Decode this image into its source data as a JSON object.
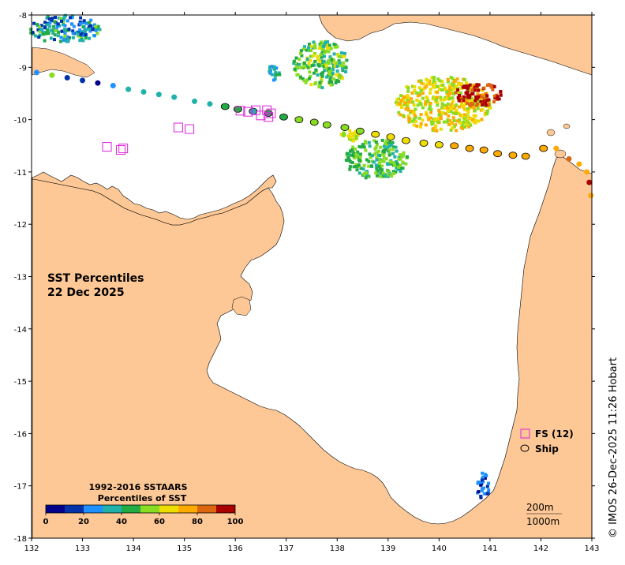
{
  "title": {
    "line1": "SST Percentiles",
    "line2": "22 Dec 2025"
  },
  "credit": "© IMOS 26-Dec-2025 11:26 Hobart",
  "axes": {
    "x_ticks": [
      "132",
      "133",
      "134",
      "135",
      "136",
      "137",
      "138",
      "139",
      "140",
      "141",
      "142",
      "143"
    ],
    "y_ticks": [
      "-8",
      "-9",
      "-10",
      "-11",
      "-12",
      "-13",
      "-14",
      "-15",
      "-16",
      "-17",
      "-18"
    ],
    "lon_range": [
      132,
      143
    ],
    "lat_range": [
      -18,
      -8
    ]
  },
  "colorbar": {
    "title1": "1992-2016 SSTAARS",
    "title2": "Percentiles of SST",
    "labels": [
      "0",
      "20",
      "40",
      "60",
      "80",
      "100"
    ],
    "colors": [
      "#00008b",
      "#0033aa",
      "#1e90ff",
      "#20b2aa",
      "#22aa44",
      "#88dd22",
      "#eedd00",
      "#ffaa00",
      "#dd6611",
      "#aa0000"
    ]
  },
  "legend": {
    "fs_label": "FS (12)",
    "ship_label": "Ship",
    "fs_color": "#dd22dd"
  },
  "depth": {
    "contour1": "200m",
    "contour2": "1000m"
  },
  "colors": {
    "land": "#fdc896",
    "ocean": "#ffffff"
  },
  "ship_track": [
    {
      "lon": 132.1,
      "lat": -9.1,
      "pct": 25
    },
    {
      "lon": 132.4,
      "lat": -9.15,
      "pct": 50
    },
    {
      "lon": 132.7,
      "lat": -9.2,
      "pct": 10
    },
    {
      "lon": 133.0,
      "lat": -9.25,
      "pct": 15
    },
    {
      "lon": 133.3,
      "lat": -9.3,
      "pct": 5
    },
    {
      "lon": 133.6,
      "lat": -9.35,
      "pct": 28
    },
    {
      "lon": 133.9,
      "lat": -9.42,
      "pct": 30
    },
    {
      "lon": 134.2,
      "lat": -9.47,
      "pct": 32
    },
    {
      "lon": 134.5,
      "lat": -9.52,
      "pct": 30
    },
    {
      "lon": 134.8,
      "lat": -9.57,
      "pct": 30
    },
    {
      "lon": 135.2,
      "lat": -9.65,
      "pct": 32
    },
    {
      "lon": 135.5,
      "lat": -9.7,
      "pct": 34
    },
    {
      "lon": 135.8,
      "lat": -9.75,
      "pct": 40
    },
    {
      "lon": 136.05,
      "lat": -9.8,
      "pct": 45
    },
    {
      "lon": 136.35,
      "lat": -9.84,
      "pct": 35
    },
    {
      "lon": 136.65,
      "lat": -9.88,
      "pct": 45
    },
    {
      "lon": 136.95,
      "lat": -9.95,
      "pct": 45
    },
    {
      "lon": 137.25,
      "lat": -10.0,
      "pct": 50
    },
    {
      "lon": 137.55,
      "lat": -10.05,
      "pct": 50
    },
    {
      "lon": 137.8,
      "lat": -10.1,
      "pct": 55
    },
    {
      "lon": 138.15,
      "lat": -10.15,
      "pct": 55
    },
    {
      "lon": 138.45,
      "lat": -10.22,
      "pct": 58
    },
    {
      "lon": 138.75,
      "lat": -10.28,
      "pct": 60
    },
    {
      "lon": 139.05,
      "lat": -10.33,
      "pct": 62
    },
    {
      "lon": 139.35,
      "lat": -10.4,
      "pct": 65
    },
    {
      "lon": 139.7,
      "lat": -10.45,
      "pct": 66
    },
    {
      "lon": 140.0,
      "lat": -10.48,
      "pct": 68
    },
    {
      "lon": 140.3,
      "lat": -10.5,
      "pct": 72
    },
    {
      "lon": 140.6,
      "lat": -10.55,
      "pct": 74
    },
    {
      "lon": 140.88,
      "lat": -10.58,
      "pct": 74
    },
    {
      "lon": 141.15,
      "lat": -10.65,
      "pct": 76
    },
    {
      "lon": 141.45,
      "lat": -10.68,
      "pct": 76
    },
    {
      "lon": 141.7,
      "lat": -10.7,
      "pct": 76
    },
    {
      "lon": 142.05,
      "lat": -10.55,
      "pct": 78
    },
    {
      "lon": 142.3,
      "lat": -10.55,
      "pct": 76
    },
    {
      "lon": 142.55,
      "lat": -10.75,
      "pct": 80
    },
    {
      "lon": 142.75,
      "lat": -10.85,
      "pct": 76
    },
    {
      "lon": 142.9,
      "lat": -11.0,
      "pct": 75
    },
    {
      "lon": 142.95,
      "lat": -11.2,
      "pct": 95
    },
    {
      "lon": 142.98,
      "lat": -11.45,
      "pct": 72
    }
  ],
  "fs_points": [
    {
      "lon": 133.48,
      "lat": -10.52
    },
    {
      "lon": 133.75,
      "lat": -10.58
    },
    {
      "lon": 133.8,
      "lat": -10.55
    },
    {
      "lon": 134.88,
      "lat": -10.15
    },
    {
      "lon": 135.1,
      "lat": -10.18
    },
    {
      "lon": 136.1,
      "lat": -9.83
    },
    {
      "lon": 136.25,
      "lat": -9.85
    },
    {
      "lon": 136.4,
      "lat": -9.82
    },
    {
      "lon": 136.5,
      "lat": -9.92
    },
    {
      "lon": 136.62,
      "lat": -9.82
    },
    {
      "lon": 136.65,
      "lat": -9.95
    },
    {
      "lon": 136.7,
      "lat": -9.88
    }
  ]
}
